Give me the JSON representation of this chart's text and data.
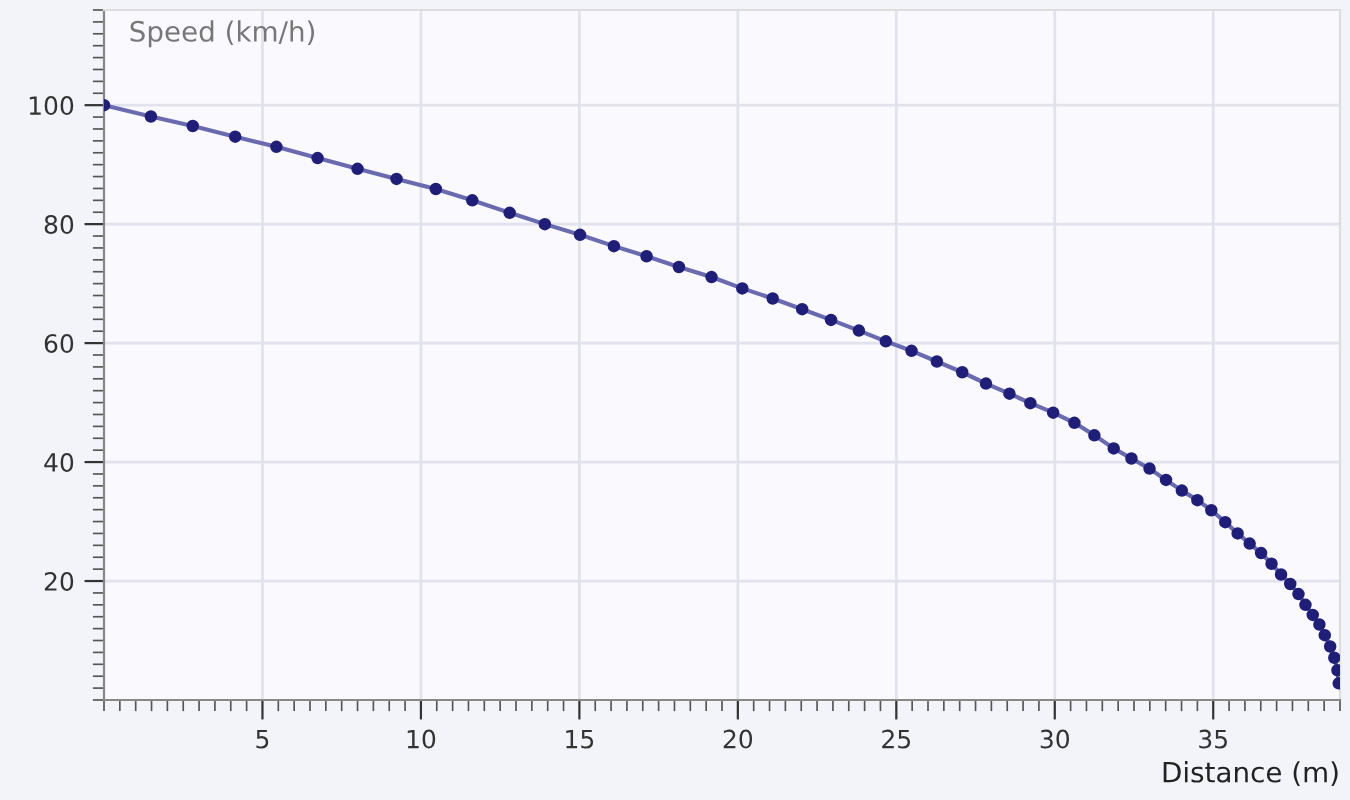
{
  "chart_data": {
    "type": "line",
    "ylabel": "Speed (km/h)",
    "xlabel": "Distance (m)",
    "series": [
      {
        "color": "#1f1f7a",
        "x": [
          0,
          1.48,
          2.8,
          4.14,
          5.44,
          6.74,
          8.0,
          9.23,
          10.47,
          11.62,
          12.8,
          13.91,
          15.02,
          16.09,
          17.12,
          18.14,
          19.17,
          20.14,
          21.1,
          22.03,
          22.94,
          23.82,
          24.67,
          25.48,
          26.28,
          27.08,
          27.83,
          28.57,
          29.23,
          29.95,
          30.62,
          31.25,
          31.86,
          32.42,
          32.99,
          33.51,
          34.01,
          34.5,
          34.94,
          35.38,
          35.77,
          36.15,
          36.51,
          36.84,
          37.14,
          37.43,
          37.69,
          37.91,
          38.14,
          38.35,
          38.52,
          38.69,
          38.82,
          38.92,
          38.96
        ],
        "values": [
          100,
          98.1,
          96.5,
          94.7,
          93.0,
          91.1,
          89.3,
          87.6,
          85.9,
          84.0,
          81.9,
          80.0,
          78.2,
          76.3,
          74.6,
          72.8,
          71.1,
          69.2,
          67.5,
          65.7,
          63.9,
          62.1,
          60.3,
          58.7,
          56.9,
          55.1,
          53.2,
          51.5,
          49.9,
          48.3,
          46.6,
          44.5,
          42.3,
          40.6,
          38.9,
          37.0,
          35.2,
          33.6,
          31.9,
          29.9,
          28.0,
          26.3,
          24.7,
          22.9,
          21.1,
          19.5,
          17.8,
          16.0,
          14.3,
          12.7,
          10.9,
          9.0,
          7.1,
          5.0,
          2.8
        ]
      }
    ],
    "xlim": [
      0,
      39
    ],
    "ylim": [
      0,
      116
    ],
    "xticks": [
      5,
      10,
      15,
      20,
      25,
      30,
      35
    ],
    "yticks": [
      20,
      40,
      60,
      80,
      100
    ],
    "grid": true,
    "marker": "circle",
    "line_style": "solid"
  }
}
